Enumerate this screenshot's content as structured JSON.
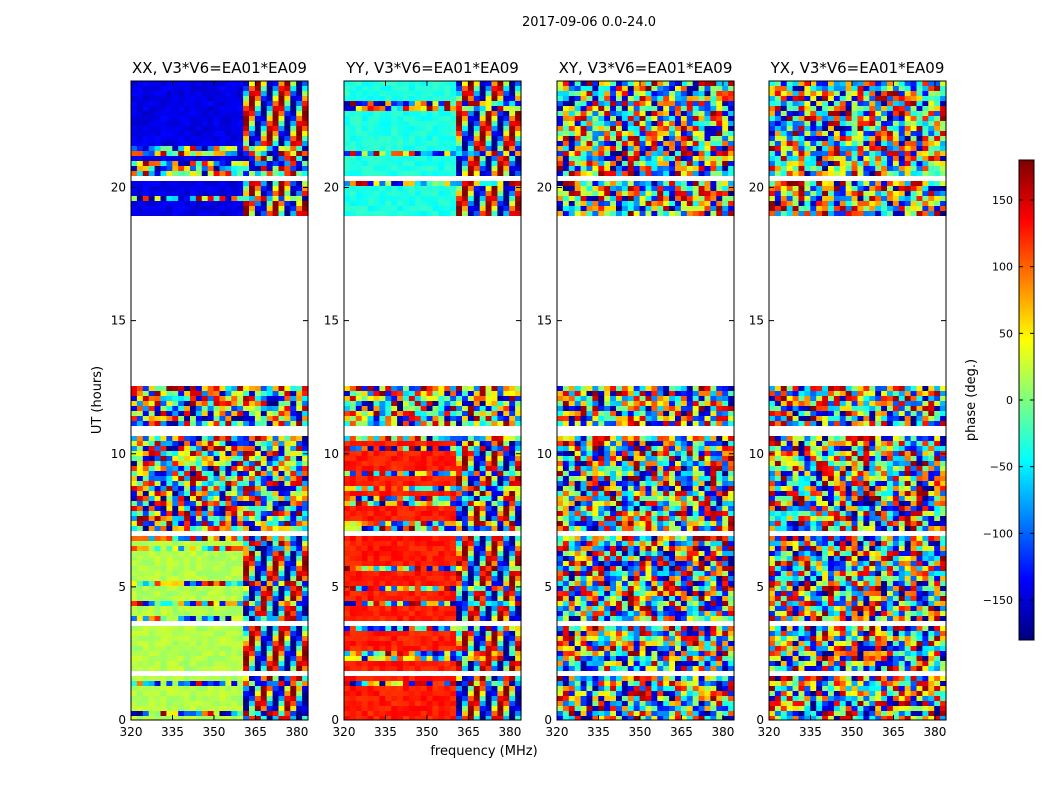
{
  "figure": {
    "suptitle": "2017-09-06 0.0-24.0",
    "xlabel": "frequency (MHz)",
    "ylabel": "UT (hours)"
  },
  "colorbar": {
    "label": "phase (deg.)",
    "range": [
      -180,
      180
    ],
    "ticks": [
      -150,
      -100,
      -50,
      0,
      50,
      100,
      150
    ],
    "tick_labels": [
      "−150",
      "−100",
      "−50",
      "0",
      "50",
      "100",
      "150"
    ],
    "colormap": "jet",
    "colors": [
      "#00007f",
      "#0000ff",
      "#007fff",
      "#00ffff",
      "#7fff7f",
      "#ffff00",
      "#ff7f00",
      "#ff0000",
      "#7f0000"
    ]
  },
  "chart_data": [
    {
      "type": "heatmap",
      "title": "XX, V3*V6=EA01*EA09",
      "x_ticks": [
        320,
        335,
        350,
        365,
        380
      ],
      "y_ticks": [
        0,
        5,
        10,
        15,
        20
      ],
      "xlim": [
        320,
        384
      ],
      "ylim": [
        0,
        24
      ],
      "value": "phase (deg.)",
      "data_coverage_ut": [
        [
          0,
          12.5
        ],
        [
          19.0,
          20.3
        ],
        [
          20.4,
          24
        ]
      ],
      "dominant_color": "green"
    },
    {
      "type": "heatmap",
      "title": "YY, V3*V6=EA01*EA09",
      "x_ticks": [
        320,
        335,
        350,
        365,
        380
      ],
      "y_ticks": [
        0,
        5,
        10,
        15,
        20
      ],
      "xlim": [
        320,
        384
      ],
      "ylim": [
        0,
        24
      ],
      "value": "phase (deg.)",
      "data_coverage_ut": [
        [
          0,
          12.5
        ],
        [
          19.0,
          20.3
        ],
        [
          20.4,
          24
        ]
      ],
      "dominant_color": "red"
    },
    {
      "type": "heatmap",
      "title": "XY, V3*V6=EA01*EA09",
      "x_ticks": [
        320,
        335,
        350,
        365,
        380
      ],
      "y_ticks": [
        0,
        5,
        10,
        15,
        20
      ],
      "xlim": [
        320,
        384
      ],
      "ylim": [
        0,
        24
      ],
      "value": "phase (deg.)",
      "data_coverage_ut": [
        [
          0,
          12.5
        ],
        [
          19.0,
          20.3
        ],
        [
          20.4,
          24
        ]
      ],
      "dominant_color": "noise"
    },
    {
      "type": "heatmap",
      "title": "YX, V3*V6=EA01*EA09",
      "x_ticks": [
        320,
        335,
        350,
        365,
        380
      ],
      "y_ticks": [
        0,
        5,
        10,
        15,
        20
      ],
      "xlim": [
        320,
        384
      ],
      "ylim": [
        0,
        24
      ],
      "value": "phase (deg.)",
      "data_coverage_ut": [
        [
          0,
          12.5
        ],
        [
          19.0,
          20.3
        ],
        [
          20.4,
          24
        ]
      ],
      "dominant_color": "noise"
    }
  ]
}
